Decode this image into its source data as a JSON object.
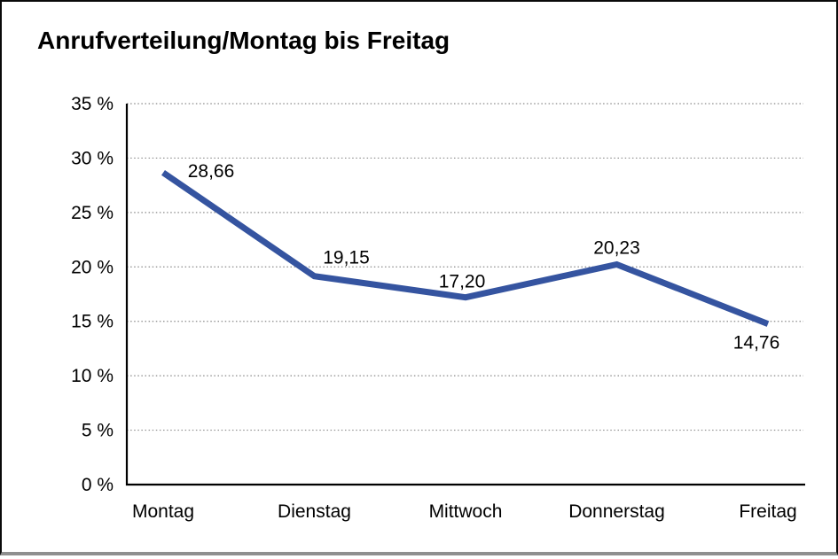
{
  "title": "Anrufverteilung/Montag bis Freitag",
  "chart_data": {
    "type": "line",
    "title": "Anrufverteilung/Montag bis Freitag",
    "categories": [
      "Montag",
      "Dienstag",
      "Mittwoch",
      "Donnerstag",
      "Freitag"
    ],
    "values": [
      28.66,
      19.15,
      17.2,
      20.23,
      14.76
    ],
    "value_labels": [
      "28,66",
      "19,15",
      "17,20",
      "20,23",
      "14,76"
    ],
    "series_name": "Anrufverteilung",
    "xlabel": "",
    "ylabel": "",
    "ylim": [
      0,
      35
    ],
    "ytick_step": 5,
    "ytick_labels": [
      "0 %",
      "5 %",
      "10 %",
      "15 %",
      "20 %",
      "25 %",
      "30 %",
      "35 %"
    ],
    "grid": "horizontal-dotted",
    "legend": "none",
    "colors": {
      "line": "#3554A0",
      "grid": "#8a8a8a",
      "axis": "#000000",
      "text": "#000000",
      "frame_border": "#0a0a0a",
      "frame_bottom": "#8f8f8f",
      "background": "#ffffff"
    }
  }
}
